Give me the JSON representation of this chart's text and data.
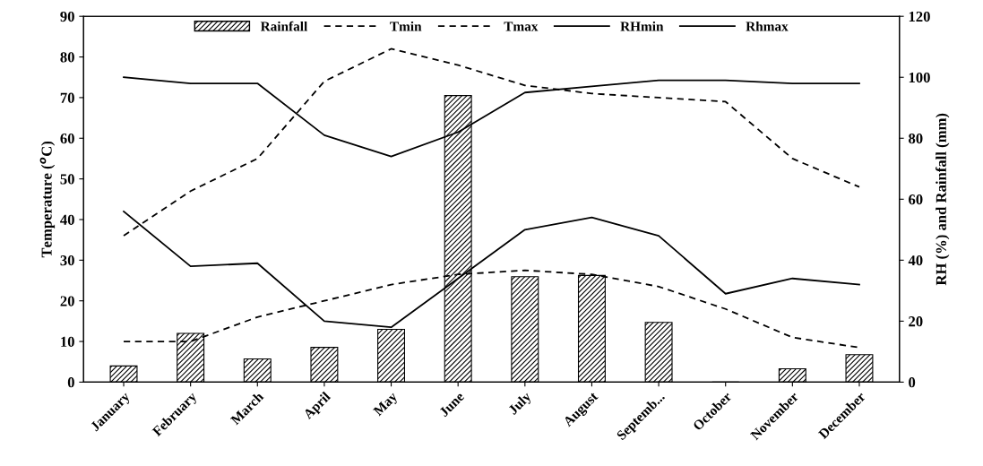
{
  "chart_data": {
    "type": "bar",
    "categories": [
      "January",
      "February",
      "March",
      "April",
      "May",
      "June",
      "July",
      "August",
      "Septemb...",
      "October",
      "November",
      "December"
    ],
    "series": [
      {
        "name": "Rainfall",
        "axis": "y2",
        "color": "#000000",
        "values": [
          5.3,
          16,
          7.6,
          11.4,
          17.3,
          94,
          34.6,
          35,
          19.6,
          0,
          4.4,
          9
        ]
      },
      {
        "name": "Tmin",
        "type": "line",
        "line_style": "dashed",
        "color": "#000000",
        "values": [
          10,
          10,
          16,
          20,
          24,
          26.5,
          27.5,
          26.5,
          23.5,
          18,
          11,
          8.5
        ]
      },
      {
        "name": "Tmax",
        "type": "line",
        "line_style": "dashed",
        "color": "#000000",
        "values": [
          36,
          47,
          55,
          74,
          82,
          78,
          73,
          71,
          70,
          69,
          55,
          48
        ]
      },
      {
        "name": "RHmin",
        "type": "line",
        "axis": "y2",
        "line_style": "solid",
        "color": "#000000",
        "values": [
          56,
          38,
          39,
          20,
          18,
          34,
          50,
          54,
          48,
          29,
          34,
          32
        ]
      },
      {
        "name": "Rhmax",
        "type": "line",
        "axis": "y2",
        "line_style": "solid",
        "color": "#000000",
        "values": [
          100,
          98,
          98,
          81,
          74,
          82,
          95,
          97,
          99,
          99,
          98,
          98
        ]
      }
    ],
    "ylabel": "Temperature ($^{o}$C)",
    "y2label": "RH (%) and Rainfall (mm)",
    "ylim": [
      0,
      90
    ],
    "yticks": [
      0,
      10,
      20,
      30,
      40,
      50,
      60,
      70,
      80,
      90
    ],
    "y2lim": [
      0,
      120
    ],
    "y2ticks": [
      0,
      20,
      40,
      60,
      80,
      100,
      120
    ],
    "legend": "top"
  }
}
